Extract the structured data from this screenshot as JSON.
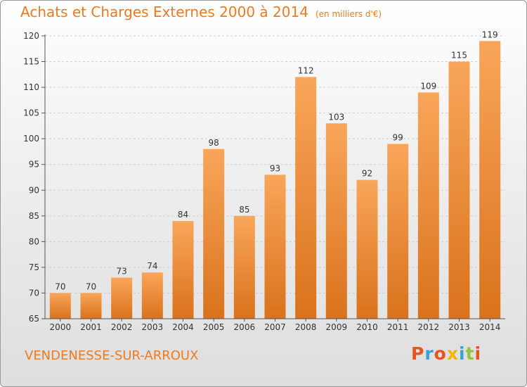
{
  "chart_data": {
    "type": "bar",
    "title": "Achats et Charges Externes 2000 à 2014",
    "subtitle": "(en milliers d'€)",
    "categories": [
      "2000",
      "2001",
      "2002",
      "2003",
      "2004",
      "2005",
      "2006",
      "2007",
      "2008",
      "2009",
      "2010",
      "2011",
      "2012",
      "2013",
      "2014"
    ],
    "values": [
      70,
      70,
      73,
      74,
      84,
      98,
      85,
      93,
      112,
      103,
      92,
      99,
      109,
      115,
      119
    ],
    "xlabel": "",
    "ylabel": "",
    "ylim": [
      65,
      120
    ],
    "yticks": [
      65,
      70,
      75,
      80,
      85,
      90,
      95,
      100,
      105,
      110,
      115,
      120
    ],
    "grid": true,
    "bar_color_top": "#f9a65a",
    "bar_color_bottom": "#d9721c"
  },
  "footer": {
    "place": "VENDENESSE-SUR-ARROUX",
    "logo": [
      "P",
      "r",
      "o",
      "x",
      "i",
      "t",
      "i"
    ],
    "logo_colors": [
      "#e8541e",
      "#3aa0d8",
      "#e8541e",
      "#f5b400",
      "#3aa0d8",
      "#8dc63f",
      "#e8541e"
    ]
  },
  "colors": {
    "accent": "#ee7a1f"
  }
}
